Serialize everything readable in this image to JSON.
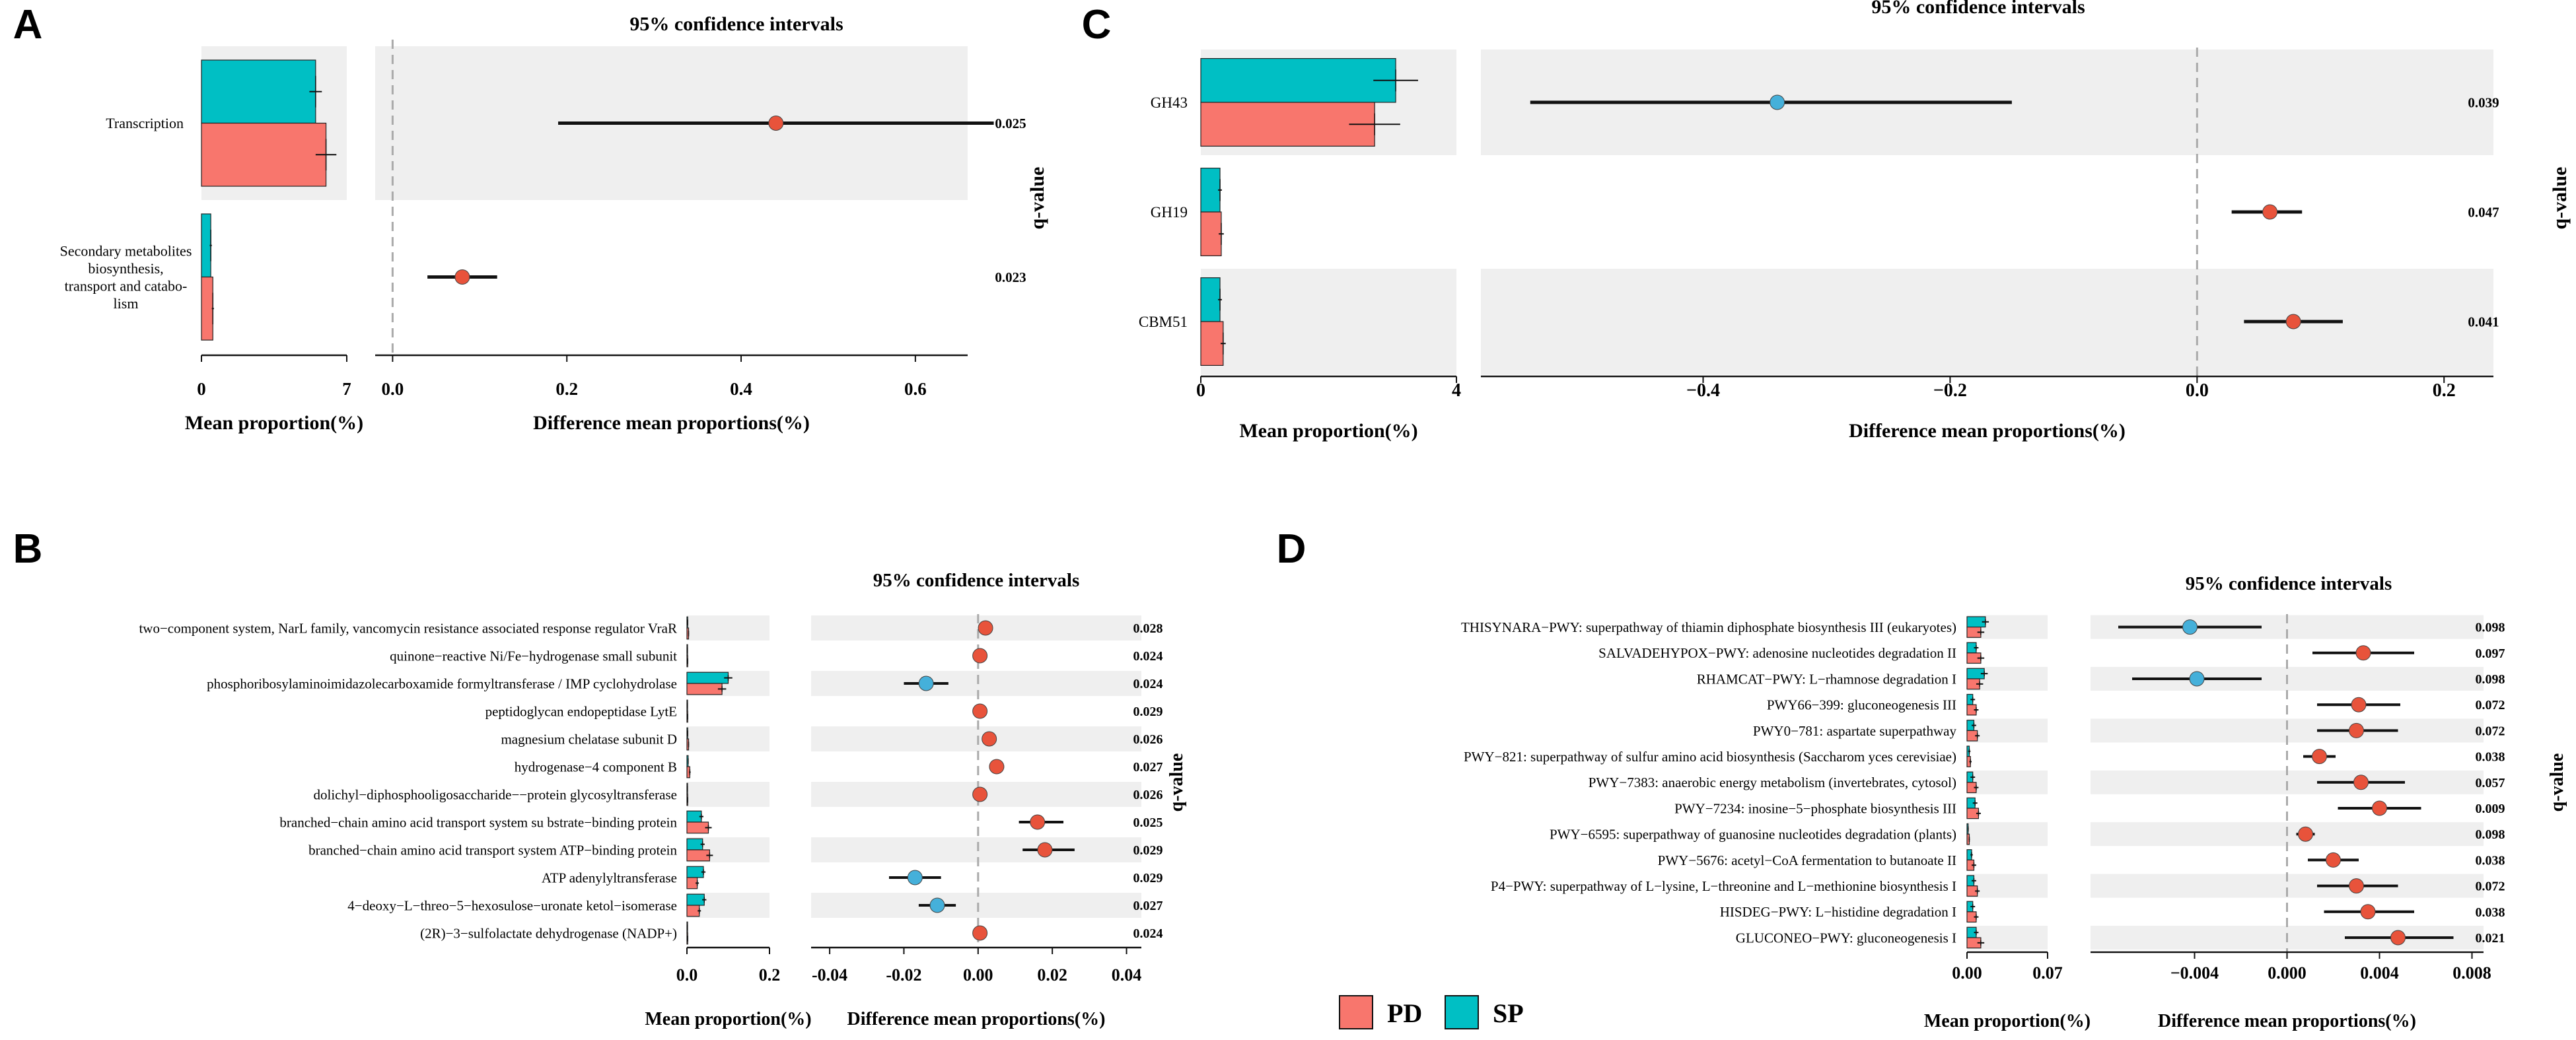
{
  "legend": {
    "items": [
      {
        "label": "PD",
        "color": "#F8766D"
      },
      {
        "label": "SP",
        "color": "#00BFC4"
      }
    ]
  },
  "colors": {
    "pd": "#F8766D",
    "sp": "#00BFC4",
    "pd_point": "#E8533B",
    "sp_point": "#45B0DA",
    "band": "#EFEFEF"
  },
  "chart_data": [
    {
      "panel": "A",
      "type": "extended_error_bar",
      "title": "95% confidence intervals",
      "xlabel_left": "Mean proportion(%)",
      "xlabel_right": "Difference mean proportions(%)",
      "side_label": "q-value",
      "bar_xlim": [
        0,
        7
      ],
      "bar_ticks": [
        "0",
        "7"
      ],
      "diff_xlim": [
        -0.02,
        0.66
      ],
      "diff_ticks": [
        "0.0",
        "0.2",
        "0.4",
        "0.6"
      ],
      "rows": [
        {
          "label": "Transcription",
          "sp": 5.5,
          "sp_err": 0.3,
          "pd": 6.0,
          "pd_err": 0.5,
          "diff": 0.44,
          "lo": 0.19,
          "hi": 0.69,
          "group": "PD",
          "q": "0.025"
        },
        {
          "label": "Secondary metabolites biosynthesis, transport and catabo- lism",
          "sp": 0.45,
          "sp_err": 0.05,
          "pd": 0.55,
          "pd_err": 0.05,
          "diff": 0.08,
          "lo": 0.04,
          "hi": 0.12,
          "group": "PD",
          "q": "0.023"
        }
      ]
    },
    {
      "panel": "B",
      "type": "extended_error_bar",
      "title": "95% confidence intervals",
      "xlabel_left": "Mean proportion(%)",
      "xlabel_right": "Difference mean proportions(%)",
      "side_label": "q-value",
      "bar_xlim": [
        0,
        0.2
      ],
      "bar_ticks": [
        "0.0",
        "0.2"
      ],
      "diff_xlim": [
        -0.045,
        0.044
      ],
      "diff_ticks": [
        "-0.04",
        "-0.02",
        "0.00",
        "0.02",
        "0.04"
      ],
      "rows": [
        {
          "label": "two−component system, NarL family, vancomycin resistance associated response regulator VraR",
          "sp": 0.002,
          "sp_err": 0.001,
          "pd": 0.004,
          "pd_err": 0.001,
          "diff": 0.002,
          "lo": 0.001,
          "hi": 0.003,
          "group": "PD",
          "q": "0.028"
        },
        {
          "label": "quinone−reactive Ni/Fe−hydrogenase small subunit",
          "sp": 0.001,
          "sp_err": 0.0005,
          "pd": 0.002,
          "pd_err": 0.0005,
          "diff": 0.0005,
          "lo": 0.0,
          "hi": 0.001,
          "group": "PD",
          "q": "0.024"
        },
        {
          "label": "phosphoribosylaminoimidazolecarboxamide formyltransferase / IMP cyclohydrolase",
          "sp": 0.1,
          "sp_err": 0.01,
          "pd": 0.085,
          "pd_err": 0.01,
          "diff": -0.014,
          "lo": -0.02,
          "hi": -0.008,
          "group": "SP",
          "q": "0.024"
        },
        {
          "label": "peptidoglycan endopeptidase LytE",
          "sp": 0.001,
          "sp_err": 0.0005,
          "pd": 0.002,
          "pd_err": 0.0005,
          "diff": 0.0005,
          "lo": 0.0,
          "hi": 0.001,
          "group": "PD",
          "q": "0.029"
        },
        {
          "label": "magnesium chelatase subunit D",
          "sp": 0.002,
          "sp_err": 0.001,
          "pd": 0.004,
          "pd_err": 0.001,
          "diff": 0.003,
          "lo": 0.002,
          "hi": 0.004,
          "group": "PD",
          "q": "0.026"
        },
        {
          "label": "hydrogenase−4 component B",
          "sp": 0.003,
          "sp_err": 0.001,
          "pd": 0.007,
          "pd_err": 0.002,
          "diff": 0.005,
          "lo": 0.003,
          "hi": 0.007,
          "group": "PD",
          "q": "0.027"
        },
        {
          "label": "dolichyl−diphosphooligosaccharide−−protein glycosyltransferase",
          "sp": 0.001,
          "sp_err": 0.0005,
          "pd": 0.002,
          "pd_err": 0.0005,
          "diff": 0.0005,
          "lo": 0.0,
          "hi": 0.001,
          "group": "PD",
          "q": "0.026"
        },
        {
          "label": "branched−chain amino acid transport system su bstrate−binding protein",
          "sp": 0.035,
          "sp_err": 0.005,
          "pd": 0.052,
          "pd_err": 0.008,
          "diff": 0.016,
          "lo": 0.011,
          "hi": 0.023,
          "group": "PD",
          "q": "0.025"
        },
        {
          "label": "branched−chain amino acid transport system ATP−binding protein",
          "sp": 0.038,
          "sp_err": 0.005,
          "pd": 0.055,
          "pd_err": 0.008,
          "diff": 0.018,
          "lo": 0.012,
          "hi": 0.026,
          "group": "PD",
          "q": "0.029"
        },
        {
          "label": "ATP adenylyltransferase",
          "sp": 0.04,
          "sp_err": 0.005,
          "pd": 0.025,
          "pd_err": 0.004,
          "diff": -0.017,
          "lo": -0.024,
          "hi": -0.01,
          "group": "SP",
          "q": "0.029"
        },
        {
          "label": "4−deoxy−L−threo−5−hexosulose−uronate ketol−isomerase",
          "sp": 0.042,
          "sp_err": 0.005,
          "pd": 0.03,
          "pd_err": 0.004,
          "diff": -0.011,
          "lo": -0.016,
          "hi": -0.006,
          "group": "SP",
          "q": "0.027"
        },
        {
          "label": "(2R)−3−sulfolactate dehydrogenase (NADP+)",
          "sp": 0.001,
          "sp_err": 0.0005,
          "pd": 0.002,
          "pd_err": 0.0005,
          "diff": 0.0005,
          "lo": 0.0,
          "hi": 0.001,
          "group": "PD",
          "q": "0.024"
        }
      ]
    },
    {
      "panel": "C",
      "type": "extended_error_bar",
      "title": "95% confidence intervals",
      "xlabel_left": "Mean proportion(%)",
      "xlabel_right": "Difference mean proportions(%)",
      "side_label": "q-value",
      "bar_xlim": [
        0,
        4
      ],
      "bar_ticks": [
        "0",
        "4"
      ],
      "diff_xlim": [
        -0.58,
        0.24
      ],
      "diff_ticks": [
        "−0.4",
        "−0.2",
        "0.0",
        "0.2"
      ],
      "rows": [
        {
          "label": "GH43",
          "sp": 3.05,
          "sp_err": 0.35,
          "pd": 2.72,
          "pd_err": 0.4,
          "diff": -0.34,
          "lo": -0.54,
          "hi": -0.15,
          "group": "SP",
          "q": "0.039"
        },
        {
          "label": "GH19",
          "sp": 0.3,
          "sp_err": 0.03,
          "pd": 0.32,
          "pd_err": 0.04,
          "diff": 0.059,
          "lo": 0.028,
          "hi": 0.085,
          "group": "PD",
          "q": "0.047"
        },
        {
          "label": "CBM51",
          "sp": 0.3,
          "sp_err": 0.03,
          "pd": 0.35,
          "pd_err": 0.04,
          "diff": 0.078,
          "lo": 0.038,
          "hi": 0.118,
          "group": "PD",
          "q": "0.041"
        }
      ]
    },
    {
      "panel": "D",
      "type": "extended_error_bar",
      "title": "95% confidence intervals",
      "xlabel_left": "Mean proportion(%)",
      "xlabel_right": "Difference mean proportions(%)",
      "side_label": "q-value",
      "bar_xlim": [
        0,
        0.07
      ],
      "bar_ticks": [
        "0.00",
        "0.07"
      ],
      "diff_xlim": [
        -0.0085,
        0.0085
      ],
      "diff_ticks": [
        "−0.004",
        "0.000",
        "0.004",
        "0.008"
      ],
      "rows": [
        {
          "label": "THISYNARA−PWY: superpathway of thiamin diphosphate biosynthesis III (eukaryotes)",
          "sp": 0.016,
          "sp_err": 0.003,
          "pd": 0.012,
          "pd_err": 0.003,
          "diff": -0.0042,
          "lo": -0.0073,
          "hi": -0.0011,
          "group": "SP",
          "q": "0.098"
        },
        {
          "label": "SALVADEHYPOX−PWY: adenosine nucleotides degradation II",
          "sp": 0.008,
          "sp_err": 0.002,
          "pd": 0.012,
          "pd_err": 0.003,
          "diff": 0.0033,
          "lo": 0.0011,
          "hi": 0.0055,
          "group": "PD",
          "q": "0.097"
        },
        {
          "label": "RHAMCAT−PWY: L−rhamnose degradation I",
          "sp": 0.015,
          "sp_err": 0.003,
          "pd": 0.011,
          "pd_err": 0.003,
          "diff": -0.0039,
          "lo": -0.0067,
          "hi": -0.0011,
          "group": "SP",
          "q": "0.098"
        },
        {
          "label": "PWY66−399: gluconeogenesis III",
          "sp": 0.005,
          "sp_err": 0.002,
          "pd": 0.008,
          "pd_err": 0.002,
          "diff": 0.0031,
          "lo": 0.0013,
          "hi": 0.0049,
          "group": "PD",
          "q": "0.072"
        },
        {
          "label": "PWY0−781: aspartate superpathway",
          "sp": 0.006,
          "sp_err": 0.002,
          "pd": 0.009,
          "pd_err": 0.002,
          "diff": 0.003,
          "lo": 0.0013,
          "hi": 0.0048,
          "group": "PD",
          "q": "0.072"
        },
        {
          "label": "PWY−821: superpathway of sulfur amino acid biosynthesis (Saccharom yces cerevisiae)",
          "sp": 0.002,
          "sp_err": 0.001,
          "pd": 0.003,
          "pd_err": 0.001,
          "diff": 0.0014,
          "lo": 0.0007,
          "hi": 0.0021,
          "group": "PD",
          "q": "0.038"
        },
        {
          "label": "PWY−7383: anaerobic energy metabolism (invertebrates, cytosol)",
          "sp": 0.005,
          "sp_err": 0.002,
          "pd": 0.008,
          "pd_err": 0.002,
          "diff": 0.0032,
          "lo": 0.0013,
          "hi": 0.0051,
          "group": "PD",
          "q": "0.057"
        },
        {
          "label": "PWY−7234: inosine−5−phosphate biosynthesis III",
          "sp": 0.007,
          "sp_err": 0.002,
          "pd": 0.01,
          "pd_err": 0.002,
          "diff": 0.004,
          "lo": 0.0022,
          "hi": 0.0058,
          "group": "PD",
          "q": "0.009"
        },
        {
          "label": "PWY−6595: superpathway of guanosine nucleotides degradation (plants)",
          "sp": 0.001,
          "sp_err": 0.0005,
          "pd": 0.002,
          "pd_err": 0.0005,
          "diff": 0.0008,
          "lo": 0.0004,
          "hi": 0.0012,
          "group": "PD",
          "q": "0.098"
        },
        {
          "label": "PWY−5676: acetyl−CoA fermentation to butanoate II",
          "sp": 0.004,
          "sp_err": 0.001,
          "pd": 0.006,
          "pd_err": 0.002,
          "diff": 0.002,
          "lo": 0.0009,
          "hi": 0.0031,
          "group": "PD",
          "q": "0.038"
        },
        {
          "label": "P4−PWY: superpathway of L−lysine, L−threonine and L−methionine biosynthesis I",
          "sp": 0.006,
          "sp_err": 0.002,
          "pd": 0.009,
          "pd_err": 0.002,
          "diff": 0.003,
          "lo": 0.0013,
          "hi": 0.0048,
          "group": "PD",
          "q": "0.072"
        },
        {
          "label": "HISDEG−PWY: L−histidine degradation I",
          "sp": 0.005,
          "sp_err": 0.002,
          "pd": 0.008,
          "pd_err": 0.002,
          "diff": 0.0035,
          "lo": 0.0016,
          "hi": 0.0055,
          "group": "PD",
          "q": "0.038"
        },
        {
          "label": "GLUCONEO−PWY: gluconeogenesis I",
          "sp": 0.008,
          "sp_err": 0.002,
          "pd": 0.012,
          "pd_err": 0.003,
          "diff": 0.0048,
          "lo": 0.0025,
          "hi": 0.0072,
          "group": "PD",
          "q": "0.021"
        }
      ]
    }
  ]
}
